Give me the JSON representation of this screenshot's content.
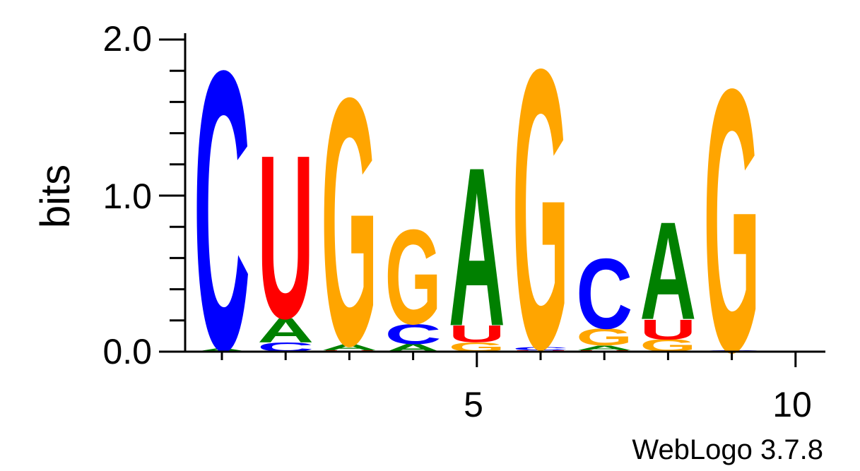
{
  "chart_data": {
    "type": "sequence-logo",
    "ylabel": "bits",
    "ylim": [
      0,
      2.0
    ],
    "y_ticks": [
      "0.0",
      "1.0",
      "2.0"
    ],
    "x_ticks": [
      {
        "position": 5,
        "label": "5"
      },
      {
        "position": 10,
        "label": "10"
      }
    ],
    "footer": "WebLogo 3.7.8",
    "colors": {
      "A": "#008000",
      "C": "#0000ff",
      "G": "#ffa500",
      "U": "#ff0000"
    },
    "positions": [
      {
        "position": 1,
        "stack": [
          [
            "A",
            0.02
          ],
          [
            "C",
            1.83
          ]
        ]
      },
      {
        "position": 2,
        "stack": [
          [
            "C",
            0.06
          ],
          [
            "A",
            0.16
          ],
          [
            "U",
            1.07
          ]
        ]
      },
      {
        "position": 3,
        "stack": [
          [
            "U",
            0.01
          ],
          [
            "A",
            0.04
          ],
          [
            "G",
            1.62
          ]
        ]
      },
      {
        "position": 4,
        "stack": [
          [
            "A",
            0.05
          ],
          [
            "C",
            0.13
          ],
          [
            "G",
            0.62
          ]
        ]
      },
      {
        "position": 5,
        "stack": [
          [
            "G",
            0.06
          ],
          [
            "U",
            0.11
          ],
          [
            "A",
            1.04
          ]
        ]
      },
      {
        "position": 6,
        "stack": [
          [
            "U",
            0.01
          ],
          [
            "C",
            0.02
          ],
          [
            "G",
            1.83
          ]
        ]
      },
      {
        "position": 7,
        "stack": [
          [
            "U",
            0.01
          ],
          [
            "A",
            0.03
          ],
          [
            "G",
            0.11
          ],
          [
            "C",
            0.46
          ]
        ]
      },
      {
        "position": 8,
        "stack": [
          [
            "G",
            0.08
          ],
          [
            "U",
            0.13
          ],
          [
            "A",
            0.64
          ]
        ]
      },
      {
        "position": 9,
        "stack": [
          [
            "C",
            0.01
          ],
          [
            "G",
            1.72
          ]
        ]
      }
    ]
  }
}
